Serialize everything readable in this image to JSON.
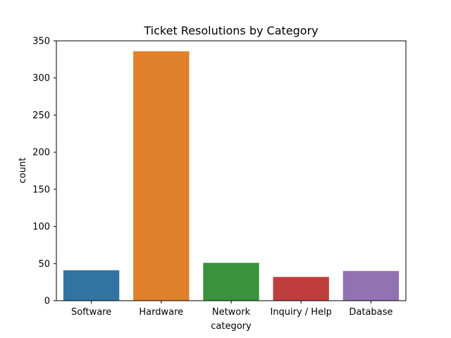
{
  "chart_data": {
    "type": "bar",
    "title": "Ticket Resolutions by Category",
    "xlabel": "category",
    "ylabel": "count",
    "categories": [
      "Software",
      "Hardware",
      "Network",
      "Inquiry / Help",
      "Database"
    ],
    "values": [
      41,
      336,
      51,
      32,
      40
    ],
    "colors": [
      "#3274a1",
      "#e1812c",
      "#3a923a",
      "#c03d3e",
      "#9372b2"
    ],
    "ylim": [
      0,
      350
    ],
    "yticks": [
      0,
      50,
      100,
      150,
      200,
      250,
      300,
      350
    ],
    "grid": false,
    "legend": "none"
  }
}
